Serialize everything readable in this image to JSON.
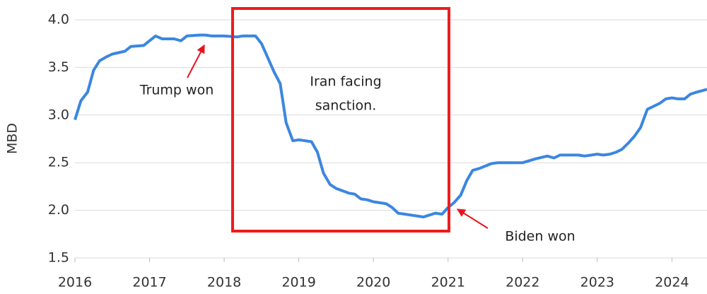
{
  "chart_data": {
    "type": "line",
    "y_label": "MBD",
    "xlim": [
      2016,
      2024.47
    ],
    "xticks": [
      2016,
      2017,
      2018,
      2019,
      2020,
      2021,
      2022,
      2023,
      2024
    ],
    "ylim": [
      1.5,
      4.0
    ],
    "yticks": [
      1.5,
      {
        "value": 2,
        "label": "2.0"
      },
      2.5,
      {
        "value": 3,
        "label": "3.0"
      },
      3.5,
      {
        "value": 4,
        "label": "4.0"
      }
    ],
    "grid": true,
    "x": [
      2016.0,
      2016.08,
      2016.17,
      2016.25,
      2016.33,
      2016.42,
      2016.5,
      2016.67,
      2016.75,
      2016.92,
      2017.0,
      2017.08,
      2017.17,
      2017.33,
      2017.42,
      2017.5,
      2017.67,
      2017.75,
      2017.83,
      2017.92,
      2018.0,
      2018.17,
      2018.25,
      2018.42,
      2018.5,
      2018.58,
      2018.67,
      2018.75,
      2018.83,
      2018.92,
      2019.0,
      2019.17,
      2019.25,
      2019.33,
      2019.42,
      2019.5,
      2019.67,
      2019.75,
      2019.83,
      2019.92,
      2020.0,
      2020.17,
      2020.25,
      2020.33,
      2020.42,
      2020.5,
      2020.67,
      2020.75,
      2020.83,
      2020.92,
      2021.0,
      2021.08,
      2021.17,
      2021.25,
      2021.33,
      2021.42,
      2021.58,
      2021.67,
      2022.0,
      2022.17,
      2022.33,
      2022.42,
      2022.5,
      2022.75,
      2022.83,
      2023.0,
      2023.08,
      2023.17,
      2023.25,
      2023.33,
      2023.42,
      2023.5,
      2023.58,
      2023.67,
      2023.83,
      2023.92,
      2024.0,
      2024.08,
      2024.17,
      2024.25,
      2024.33,
      2024.47
    ],
    "series": [
      {
        "color": "#3b86e0",
        "values": [
          2.95,
          3.15,
          3.24,
          3.47,
          3.57,
          3.61,
          3.64,
          3.67,
          3.72,
          3.73,
          3.78,
          3.83,
          3.8,
          3.8,
          3.78,
          3.83,
          3.84,
          3.84,
          3.83,
          3.83,
          3.83,
          3.82,
          3.83,
          3.83,
          3.75,
          3.61,
          3.45,
          3.33,
          2.92,
          2.73,
          2.74,
          2.72,
          2.61,
          2.39,
          2.27,
          2.23,
          2.18,
          2.17,
          2.12,
          2.11,
          2.09,
          2.07,
          2.03,
          1.97,
          1.96,
          1.95,
          1.93,
          1.95,
          1.97,
          1.96,
          2.03,
          2.08,
          2.16,
          2.31,
          2.42,
          2.44,
          2.49,
          2.5,
          2.5,
          2.54,
          2.57,
          2.55,
          2.58,
          2.58,
          2.57,
          2.59,
          2.58,
          2.59,
          2.61,
          2.64,
          2.71,
          2.78,
          2.87,
          3.06,
          3.12,
          3.17,
          3.18,
          3.17,
          3.17,
          3.22,
          3.24,
          3.27
        ]
      }
    ],
    "annotations": {
      "trump": "Trump won",
      "sanction": [
        "Iran facing",
        "sanction."
      ],
      "biden": "Biden won"
    }
  }
}
